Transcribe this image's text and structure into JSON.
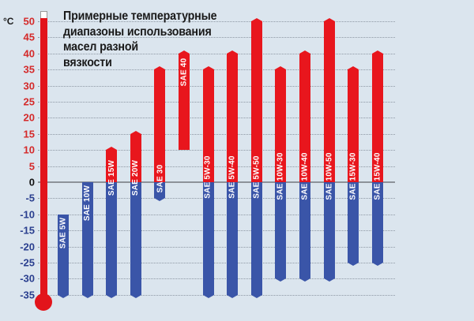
{
  "title": "Примерные температурные диапазоны использования масел разной вязкости",
  "title_lines": [
    "Примерные температурные",
    "диапазоны использования",
    "масел разной",
    "вязкости"
  ],
  "unit": "°C",
  "colors": {
    "hot": "#e8161d",
    "cold": "#3a55a8",
    "background": "#dbe5ee",
    "thermometer": "#e2141b"
  },
  "chart_data": {
    "type": "bar",
    "subtype": "floating-range",
    "title": "Примерные температурные диапазоны использования масел разной вязкости",
    "xlabel": "",
    "ylabel": "°C",
    "ylim": [
      -35,
      50
    ],
    "yticks": [
      50,
      45,
      40,
      35,
      30,
      25,
      20,
      15,
      10,
      5,
      0,
      -5,
      -10,
      -15,
      -20,
      -25,
      -30,
      -35
    ],
    "grid": true,
    "legend": "none (red = above 0 °C, blue = below 0 °C)",
    "categories": [
      "SAE 5W",
      "SAE 10W",
      "SAE 15W",
      "SAE 20W",
      "SAE 30",
      "SAE 40",
      "SAE 5W-30",
      "SAE 5W-40",
      "SAE 5W-50",
      "SAE 10W-30",
      "SAE 10W-40",
      "SAE 10W-50",
      "SAE 15W-30",
      "SAE 15W-40"
    ],
    "series": [
      {
        "name": "min_temp",
        "values": [
          -35,
          -35,
          -35,
          -35,
          -5,
          10,
          -35,
          -35,
          -35,
          -30,
          -30,
          -30,
          -25,
          -25
        ]
      },
      {
        "name": "max_temp",
        "values": [
          -10,
          0,
          10,
          15,
          35,
          40,
          35,
          40,
          50,
          35,
          40,
          50,
          35,
          40
        ]
      }
    ]
  }
}
